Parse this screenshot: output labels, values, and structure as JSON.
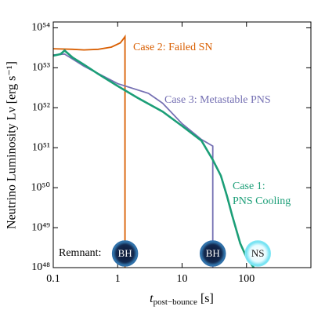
{
  "chart_data": {
    "type": "line",
    "ylabel": "Neutrino Luminosity Lν [erg s⁻¹]",
    "xlabel": {
      "symbol": "t",
      "subscript": "post−bounce",
      "unit": " [s]"
    },
    "xscale": "log",
    "yscale": "log",
    "xlim": [
      0.1,
      1000
    ],
    "ylim": [
      1e+48,
      1.4e+54
    ],
    "xticks": [
      0.1,
      1,
      10,
      100
    ],
    "yticks": [
      {
        "value": 1e+48,
        "label": "10⁴⁸"
      },
      {
        "value": 1e+49,
        "label": "10⁴⁹"
      },
      {
        "value": 1e+50,
        "label": "10⁵⁰"
      },
      {
        "value": 1e+51,
        "label": "10⁵¹"
      },
      {
        "value": 1e+52,
        "label": "10⁵²"
      },
      {
        "value": 1e+53,
        "label": "10⁵³"
      },
      {
        "value": 1e+54,
        "label": "10⁵⁴"
      }
    ],
    "series": [
      {
        "name": "Case 2: Failed SN",
        "color": "#d95f02",
        "x": [
          0.1,
          0.2,
          0.3,
          0.5,
          0.8,
          1.1,
          1.25,
          1.3,
          1.3
        ],
        "values": [
          3e+53,
          2.9e+53,
          2.8e+53,
          2.9e+53,
          3.3e+53,
          4.2e+53,
          5.5e+53,
          6e+53,
          1e+48
        ]
      },
      {
        "name": "Case 3: Metastable PNS",
        "color": "#7570b3",
        "x": [
          0.1,
          0.15,
          0.3,
          1,
          3,
          5,
          10,
          20,
          30,
          30
        ],
        "values": [
          2.1e+53,
          2.2e+53,
          1.1e+53,
          4e+52,
          2.3e+52,
          1.3e+52,
          4e+51,
          1.6e+51,
          1.1e+51,
          1e+48
        ]
      },
      {
        "name": "Case 1:\nPNS Cooling",
        "color": "#1b9e77",
        "x": [
          0.1,
          0.13,
          0.15,
          0.2,
          0.3,
          0.5,
          1,
          2,
          5,
          10,
          20,
          30,
          40,
          50,
          60,
          80,
          100,
          130
        ],
        "values": [
          2e+53,
          2.2e+53,
          2.7e+53,
          1.8e+53,
          1.2e+53,
          7e+52,
          3.5e+52,
          1.8e+52,
          8e+51,
          3.5e+51,
          1.5e+51,
          5e+50,
          2e+50,
          6e+49,
          2e+49,
          4e+48,
          1.8e+48,
          1e+48
        ]
      }
    ],
    "remnant_label": "Remnant:",
    "remnants": [
      {
        "label": "BH",
        "x": 1.3
      },
      {
        "label": "BH",
        "x": 30
      },
      {
        "label": "NS",
        "x": 150
      }
    ]
  }
}
